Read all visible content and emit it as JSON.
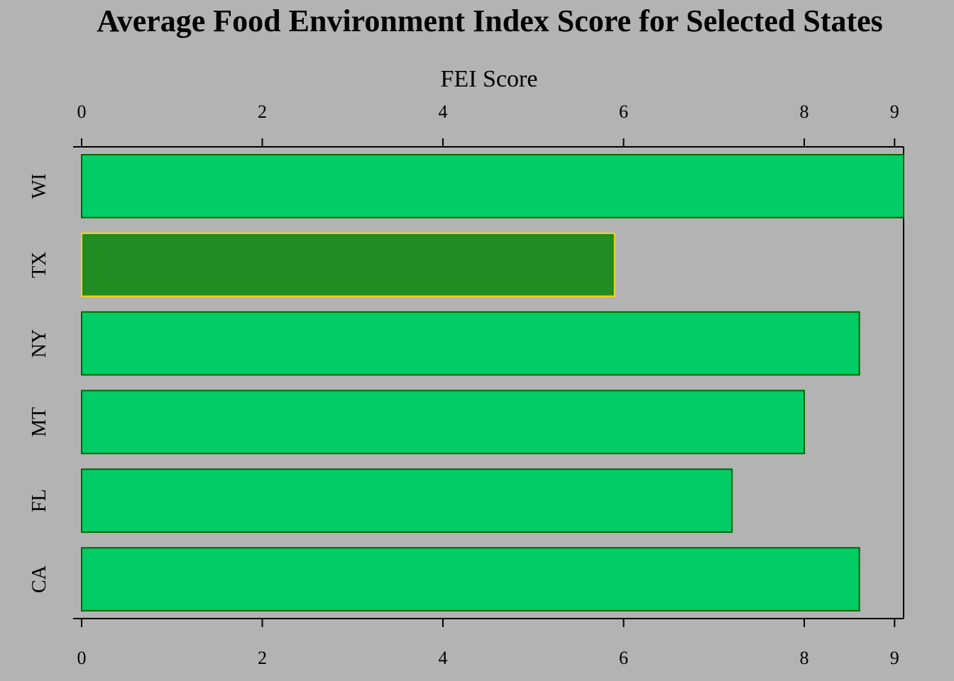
{
  "chart_data": {
    "type": "bar",
    "orientation": "horizontal",
    "title": "Average Food Environment Index Score for Selected States",
    "xlabel": "FEI Score",
    "ylabel": "",
    "categories": [
      "CA",
      "FL",
      "MT",
      "NY",
      "TX",
      "WI"
    ],
    "values": [
      8.61,
      7.2,
      8.0,
      8.61,
      5.9,
      9.1
    ],
    "highlight": "TX",
    "xlim": [
      0,
      9.1
    ],
    "xticks": [
      0,
      2,
      4,
      6,
      8,
      9
    ],
    "axes": "top-and-bottom",
    "grid": false,
    "legend": "none",
    "colors": {
      "background": "#b3b3b3",
      "bar_fill": "#00cd66",
      "bar_border": "#006400",
      "highlight_fill": "#228b22",
      "highlight_border": "#ffd700"
    }
  }
}
